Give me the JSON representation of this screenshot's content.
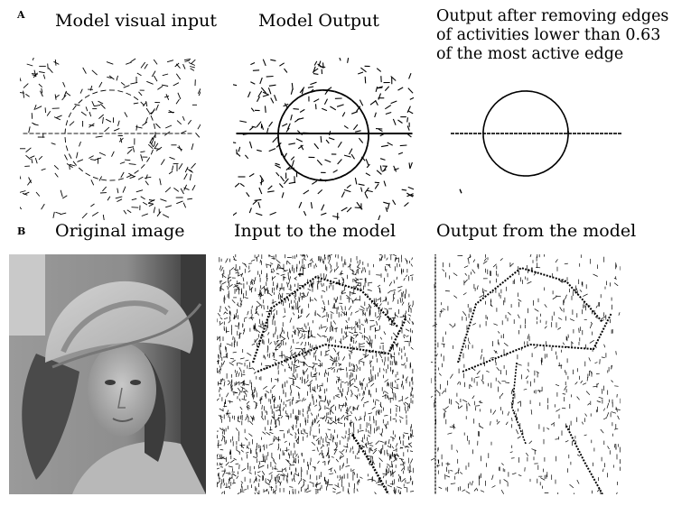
{
  "figure": {
    "panel_a": {
      "letter": "A",
      "captions": {
        "input": "Model visual input",
        "output": "Model Output",
        "thresholded": "Output after removing edges\nof activities lower than 0.63\nof the most active edge"
      }
    },
    "panel_b": {
      "letter": "B",
      "captions": {
        "original": "Original image",
        "input": "Input to the model",
        "output": "Output from the model"
      }
    }
  }
}
